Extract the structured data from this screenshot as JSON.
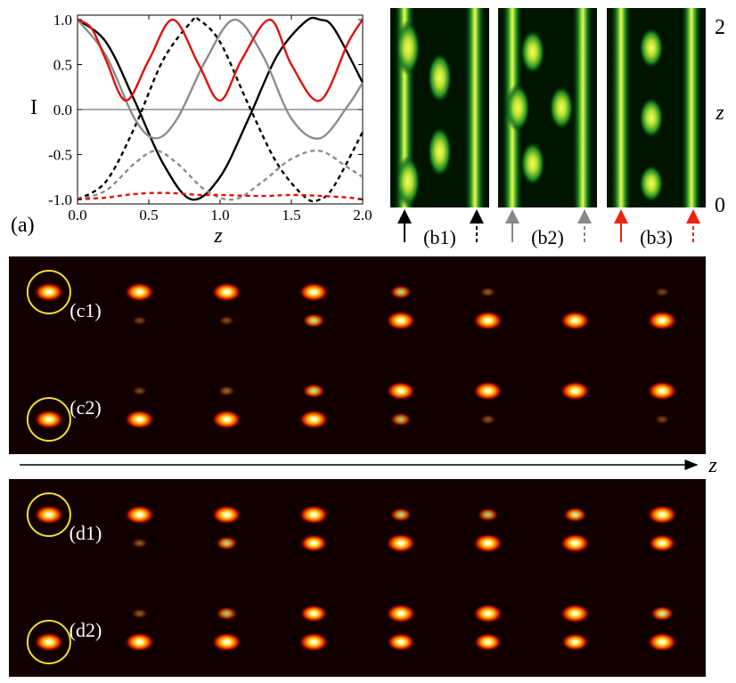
{
  "chart_data": [
    {
      "type": "line",
      "panel_label": "(a)",
      "xlabel": "z",
      "ylabel": "I",
      "xlim": [
        0.0,
        2.0
      ],
      "ylim": [
        -1.05,
        1.05
      ],
      "x_ticks": [
        "0.0",
        "0.5",
        "1.0",
        "1.5",
        "2.0"
      ],
      "y_ticks": [
        "1.0",
        "0.5",
        "0.0",
        "-0.5",
        "-1.0"
      ],
      "grid": false,
      "series": [
        {
          "color": "#000000",
          "style": "solid",
          "x": [
            0.0,
            0.2,
            0.4,
            0.6,
            0.8,
            1.0,
            1.2,
            1.4,
            1.6,
            1.7,
            1.8,
            2.0
          ],
          "y": [
            1.0,
            0.75,
            0.1,
            -0.6,
            -1.0,
            -0.75,
            -0.1,
            0.6,
            0.98,
            1.0,
            0.9,
            0.3
          ]
        },
        {
          "color": "#000000",
          "style": "dashed",
          "x": [
            0.0,
            0.2,
            0.4,
            0.6,
            0.8,
            0.85,
            1.0,
            1.2,
            1.4,
            1.6,
            1.7,
            1.8,
            2.0
          ],
          "y": [
            -1.0,
            -0.8,
            -0.2,
            0.55,
            0.98,
            1.0,
            0.75,
            0.05,
            -0.6,
            -0.98,
            -1.0,
            -0.85,
            -0.25
          ]
        },
        {
          "color": "#8c8c8c",
          "style": "solid",
          "x": [
            0.0,
            0.2,
            0.4,
            0.55,
            0.7,
            0.9,
            1.1,
            1.3,
            1.5,
            1.7,
            1.9,
            2.0
          ],
          "y": [
            1.0,
            0.6,
            -0.1,
            -0.32,
            -0.1,
            0.55,
            1.0,
            0.6,
            -0.1,
            -0.32,
            0.05,
            0.3
          ]
        },
        {
          "color": "#8c8c8c",
          "style": "dashed",
          "x": [
            0.0,
            0.2,
            0.4,
            0.55,
            0.7,
            0.9,
            1.1,
            1.3,
            1.5,
            1.7,
            1.9,
            2.0
          ],
          "y": [
            -1.0,
            -0.9,
            -0.6,
            -0.46,
            -0.6,
            -0.9,
            -1.0,
            -0.8,
            -0.55,
            -0.46,
            -0.65,
            -0.75
          ]
        },
        {
          "color": "#e01010",
          "style": "solid",
          "x": [
            0.0,
            0.1,
            0.2,
            0.34,
            0.5,
            0.67,
            0.85,
            1.0,
            1.15,
            1.35,
            1.5,
            1.7,
            1.9,
            2.0
          ],
          "y": [
            1.0,
            0.9,
            0.55,
            0.1,
            0.55,
            1.0,
            0.5,
            0.1,
            0.55,
            1.0,
            0.5,
            0.1,
            0.75,
            1.0
          ]
        },
        {
          "color": "#e01010",
          "style": "dashed",
          "x": [
            0.0,
            0.2,
            0.34,
            0.5,
            0.67,
            0.85,
            1.0,
            1.2,
            1.35,
            1.5,
            1.7,
            1.9,
            2.0
          ],
          "y": [
            -1.0,
            -0.98,
            -0.95,
            -0.93,
            -0.93,
            -0.95,
            -0.95,
            -0.96,
            -0.96,
            -0.95,
            -0.96,
            -0.98,
            -1.0
          ]
        }
      ]
    },
    {
      "type": "heatmap",
      "panels": [
        {
          "label": "(b1)",
          "colormap": "green-yellow",
          "input_arrow_color": "#000000"
        },
        {
          "label": "(b2)",
          "colormap": "green-yellow",
          "input_arrow_color": "#888888"
        },
        {
          "label": "(b3)",
          "colormap": "green-yellow",
          "input_arrow_color": "#ee2211"
        }
      ],
      "ylabel": "z",
      "y_ticks": [
        "2",
        "0"
      ]
    },
    {
      "type": "heatmap",
      "axis_label": "z",
      "colormap": "hot",
      "rows": [
        {
          "label": "(c1)",
          "top": [
            1.0,
            1.0,
            1.0,
            1.0,
            0.5,
            0.12,
            0.0,
            0.05
          ],
          "bottom": [
            0.0,
            0.05,
            0.08,
            0.55,
            1.0,
            1.0,
            1.0,
            1.0
          ]
        },
        {
          "label": "(c2)",
          "top": [
            0.0,
            0.05,
            0.15,
            0.55,
            0.95,
            1.0,
            1.0,
            1.0
          ],
          "bottom": [
            1.0,
            1.0,
            1.0,
            1.0,
            0.45,
            0.1,
            0.0,
            0.05
          ]
        },
        {
          "label": "(d1)",
          "top": [
            1.0,
            1.0,
            1.0,
            1.0,
            0.5,
            0.45,
            0.6,
            1.0
          ],
          "bottom": [
            0.0,
            0.12,
            0.5,
            0.85,
            1.0,
            1.0,
            1.0,
            0.85
          ]
        },
        {
          "label": "(d2)",
          "top": [
            0.0,
            0.12,
            0.45,
            0.85,
            1.0,
            1.0,
            1.0,
            0.6
          ],
          "bottom": [
            1.0,
            1.0,
            1.0,
            1.0,
            0.9,
            0.9,
            0.85,
            1.0
          ]
        }
      ]
    }
  ]
}
